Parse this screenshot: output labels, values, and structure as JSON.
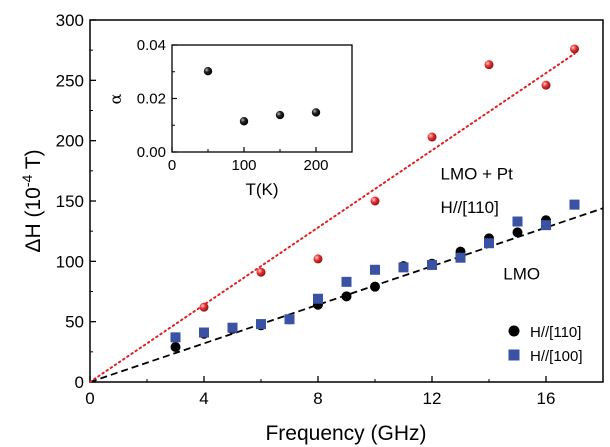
{
  "chart_data": [
    {
      "type": "scatter",
      "title": "",
      "xlabel": "Frequency (GHz)",
      "ylabel": "ΔH (10",
      "ylabel_exp": "-4",
      "ylabel_unit": " T)",
      "xlim": [
        0,
        18
      ],
      "ylim": [
        0,
        300
      ],
      "xticks": [
        0,
        4,
        8,
        12,
        16
      ],
      "yticks": [
        0,
        50,
        100,
        150,
        200,
        250,
        300
      ],
      "grid": false,
      "legend_position": "bottom-right",
      "series": [
        {
          "name": "H//[110]",
          "marker": "circle",
          "color": "#000000",
          "x": [
            3,
            4,
            5,
            6,
            7,
            8,
            9,
            10,
            11,
            12,
            13,
            14,
            15,
            16
          ],
          "y": [
            29,
            40,
            44,
            47,
            52,
            64,
            71,
            79,
            96,
            98,
            108,
            119,
            124,
            134
          ]
        },
        {
          "name": "H//[100]",
          "marker": "square",
          "color": "#3a52a3",
          "x": [
            3,
            4,
            5,
            6,
            7,
            8,
            9,
            10,
            11,
            12,
            13,
            14,
            15,
            16,
            17
          ],
          "y": [
            37,
            41,
            45,
            48,
            52,
            69,
            83,
            93,
            95,
            97,
            103,
            115,
            133,
            130,
            147
          ]
        },
        {
          "marker": "sphere",
          "color": "#e02020",
          "x": [
            4,
            6,
            8,
            10,
            12,
            14,
            16,
            17
          ],
          "y": [
            62,
            91,
            102,
            150,
            203,
            263,
            246,
            276
          ]
        }
      ],
      "fits": [
        {
          "style": "dashed",
          "color": "#000000",
          "x": [
            0,
            18
          ],
          "y": [
            0,
            144
          ]
        },
        {
          "style": "dotted",
          "color": "#e02020",
          "x": [
            0,
            17
          ],
          "y": [
            0,
            272
          ]
        }
      ],
      "annotations": [
        {
          "text": "LMO + Pt",
          "x": 12.3,
          "y": 168
        },
        {
          "text": "H//[110]",
          "x": 12.3,
          "y": 140
        },
        {
          "text": "LMO",
          "x": 14.5,
          "y": 85
        }
      ]
    },
    {
      "type": "scatter",
      "title": "",
      "xlabel": "T(K)",
      "ylabel": "α",
      "xlim": [
        0,
        250
      ],
      "ylim": [
        0,
        0.04
      ],
      "xticks": [
        0,
        100,
        200
      ],
      "yticks": [
        "0.00",
        "0.02",
        "0.04"
      ],
      "grid": false,
      "series": [
        {
          "marker": "sphere",
          "color": "#000000",
          "x": [
            50,
            100,
            150,
            200
          ],
          "y": [
            0.0302,
            0.0115,
            0.0138,
            0.0148
          ]
        }
      ]
    }
  ]
}
